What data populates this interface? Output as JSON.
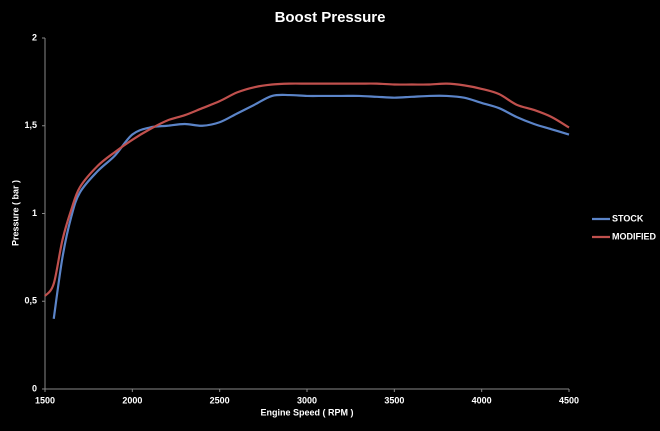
{
  "chart_data": {
    "type": "line",
    "title": "Boost Pressure",
    "x_label": "Engine Speed ( RPM )",
    "y_label": "Pressure ( bar )",
    "x": [
      1500,
      1550,
      1600,
      1650,
      1700,
      1800,
      1900,
      2000,
      2100,
      2200,
      2300,
      2400,
      2500,
      2600,
      2700,
      2800,
      2900,
      3000,
      3100,
      3200,
      3300,
      3400,
      3500,
      3600,
      3700,
      3800,
      3900,
      4000,
      4100,
      4200,
      4300,
      4400,
      4500
    ],
    "series": [
      {
        "name": "STOCK",
        "color": "#5b84c8",
        "values": [
          null,
          0.4,
          0.75,
          0.98,
          1.12,
          1.24,
          1.33,
          1.45,
          1.49,
          1.5,
          1.51,
          1.5,
          1.52,
          1.57,
          1.62,
          1.67,
          1.675,
          1.67,
          1.67,
          1.67,
          1.67,
          1.665,
          1.66,
          1.665,
          1.67,
          1.67,
          1.66,
          1.63,
          1.6,
          1.55,
          1.51,
          1.48,
          1.45
        ]
      },
      {
        "name": "MODIFIED",
        "color": "#c0504d",
        "values": [
          0.53,
          0.6,
          0.85,
          1.02,
          1.15,
          1.27,
          1.35,
          1.42,
          1.48,
          1.53,
          1.56,
          1.6,
          1.64,
          1.69,
          1.72,
          1.735,
          1.74,
          1.74,
          1.74,
          1.74,
          1.74,
          1.74,
          1.735,
          1.735,
          1.735,
          1.74,
          1.73,
          1.71,
          1.68,
          1.62,
          1.59,
          1.55,
          1.49
        ]
      }
    ],
    "xlim": [
      1500,
      4500
    ],
    "xticks": [
      1500,
      2000,
      2500,
      3000,
      3500,
      4000,
      4500
    ],
    "ylim": [
      0,
      2
    ],
    "yticks": [
      0,
      {
        "value": 0.5,
        "label": "0,5"
      },
      1,
      {
        "value": 1.5,
        "label": "1,5"
      },
      2
    ],
    "grid": false,
    "legend": "right"
  }
}
